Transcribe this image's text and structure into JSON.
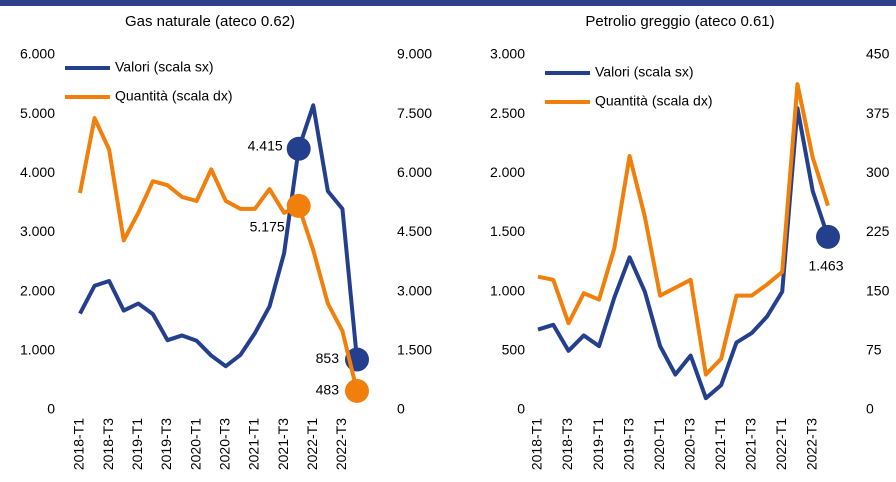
{
  "chart_data": [
    {
      "type": "line",
      "title": "Gas naturale (ateco 0.62)",
      "categories": [
        "2018-T1",
        null,
        "2018-T3",
        null,
        "2019-T1",
        null,
        "2019-T3",
        null,
        "2020-T1",
        null,
        "2020-T3",
        null,
        "2021-T1",
        null,
        "2021-T3",
        null,
        "2022-T1",
        null,
        "2022-T3",
        null
      ],
      "ylim": [
        0,
        6000
      ],
      "yticks": [
        0,
        {
          "value": 1000,
          "label": "1.000"
        },
        {
          "value": 2000,
          "label": "2.000"
        },
        {
          "value": 3000,
          "label": "3.000"
        },
        {
          "value": 4000,
          "label": "4.000"
        },
        {
          "value": 5000,
          "label": "5.000"
        },
        {
          "value": 6000,
          "label": "6.000"
        }
      ],
      "y2lim": [
        0,
        9000
      ],
      "y2ticks": [
        0,
        {
          "value": 1500,
          "label": "1.500"
        },
        {
          "value": 3000,
          "label": "3.000"
        },
        {
          "value": 4500,
          "label": "4.500"
        },
        {
          "value": 6000,
          "label": "6.000"
        },
        {
          "value": 7500,
          "label": "7.500"
        },
        {
          "value": 9000,
          "label": "9.000"
        }
      ],
      "legend": "upper left",
      "series": [
        {
          "name": "Valori (scala sx)",
          "color": "#253f8f",
          "values": [
            1630,
            2100,
            2180,
            1680,
            1800,
            1620,
            1180,
            1260,
            1170,
            920,
            740,
            930,
            1300,
            1750,
            2650,
            4415,
            5150,
            3700,
            3400,
            853
          ],
          "value_labels": [
            null,
            null,
            null,
            null,
            null,
            null,
            null,
            null,
            null,
            null,
            null,
            null,
            null,
            null,
            null,
            "4.415",
            null,
            null,
            null,
            "853"
          ]
        },
        {
          "name": "Quantità (scala dx)",
          "color": "#f07f0b",
          "axis": "y2",
          "values": [
            5500,
            7400,
            6600,
            4300,
            5000,
            5800,
            5700,
            5400,
            5300,
            6100,
            5300,
            5100,
            5100,
            5600,
            5000,
            5175,
            4050,
            2700,
            2000,
            483
          ],
          "value_labels": [
            null,
            null,
            null,
            null,
            null,
            null,
            null,
            null,
            null,
            null,
            null,
            null,
            null,
            null,
            null,
            "5.175",
            null,
            null,
            null,
            "483"
          ]
        }
      ]
    },
    {
      "type": "line",
      "title": "Petrolio greggio (ateco 0.61)",
      "categories": [
        "2018-T1",
        null,
        "2018-T3",
        null,
        "2019-T1",
        null,
        "2019-T3",
        null,
        "2020-T1",
        null,
        "2020-T3",
        null,
        "2021-T1",
        null,
        "2021-T3",
        null,
        "2022-T1",
        null,
        "2022-T3",
        null
      ],
      "ylim": [
        0,
        3000
      ],
      "yticks": [
        0,
        500,
        {
          "value": 1000,
          "label": "1.000"
        },
        {
          "value": 1500,
          "label": "1.500"
        },
        {
          "value": 2000,
          "label": "2.000"
        },
        {
          "value": 2500,
          "label": "2.500"
        },
        {
          "value": 3000,
          "label": "3.000"
        }
      ],
      "y2lim": [
        0,
        450
      ],
      "y2ticks": [
        0,
        75,
        150,
        225,
        300,
        375,
        450
      ],
      "legend": "upper left",
      "series": [
        {
          "name": "Valori (scala sx)",
          "color": "#253f8f",
          "values": [
            680,
            720,
            500,
            630,
            540,
            950,
            1290,
            1000,
            540,
            300,
            460,
            100,
            210,
            570,
            650,
            789,
            1000,
            2550,
            1850,
            1463
          ],
          "value_labels": [
            null,
            null,
            null,
            null,
            null,
            null,
            null,
            null,
            null,
            null,
            null,
            null,
            null,
            null,
            null,
            null,
            null,
            null,
            null,
            "1.463"
          ]
        },
        {
          "name": "Quantità (scala dx)",
          "color": "#f07f0b",
          "axis": "y2",
          "values": [
            169,
            165,
            110,
            148,
            140,
            205,
            322,
            245,
            145,
            155,
            165,
            45,
            65,
            145,
            145,
            159,
            175,
            413,
            320,
            259
          ]
        }
      ]
    }
  ]
}
